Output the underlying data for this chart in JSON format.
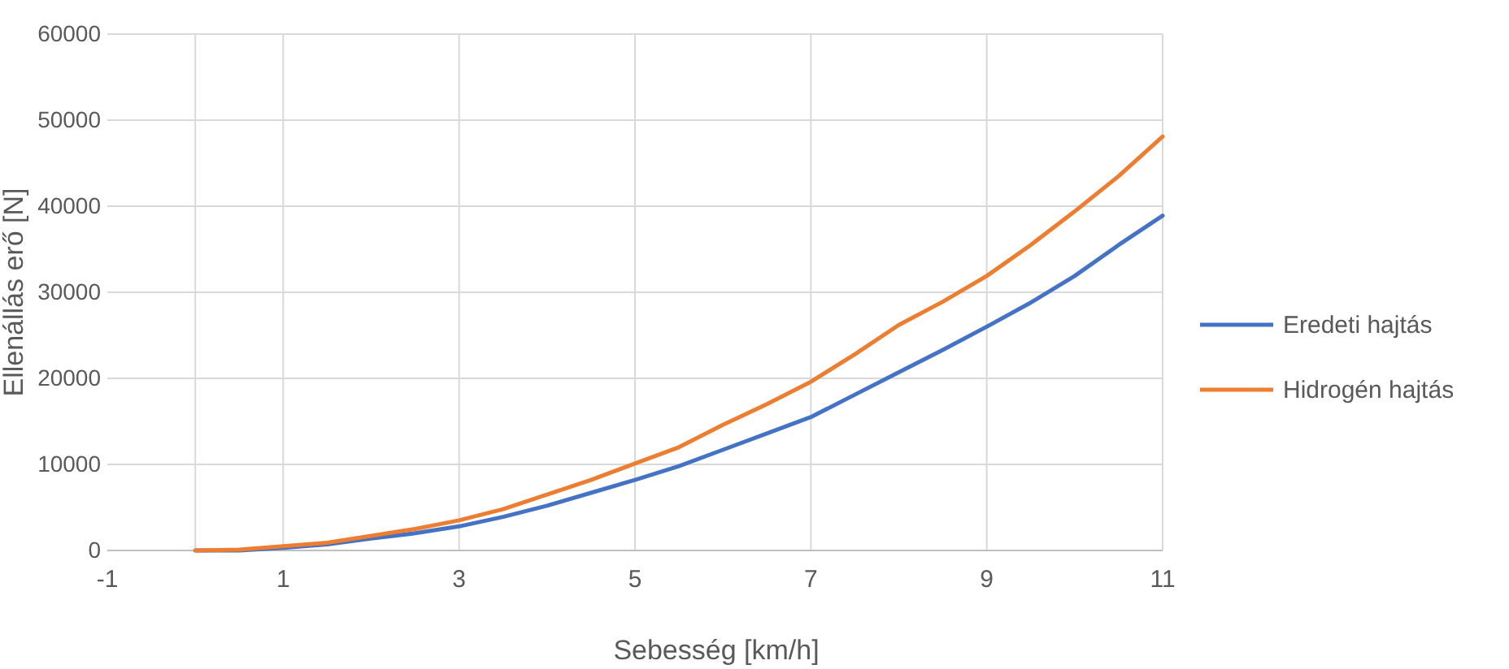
{
  "chart_data": {
    "type": "line",
    "xlabel": "Sebesség [km/h]",
    "ylabel": "Ellenállás erő [N]",
    "x": [
      0,
      0.5,
      1,
      1.5,
      2,
      2.5,
      3,
      3.5,
      4,
      4.5,
      5,
      5.5,
      6,
      6.5,
      7,
      7.5,
      8,
      8.5,
      9,
      9.5,
      10,
      10.5,
      11
    ],
    "series": [
      {
        "name": "Eredeti hajtás",
        "color": "#4472c4",
        "values": [
          0,
          0,
          300,
          700,
          1400,
          2000,
          2800,
          3900,
          5200,
          6700,
          8200,
          9800,
          11700,
          13600,
          15500,
          18100,
          20700,
          23300,
          26000,
          28800,
          31900,
          35500,
          38900
        ]
      },
      {
        "name": "Hidrogén hajtás",
        "color": "#ed7d31",
        "values": [
          0,
          100,
          500,
          900,
          1700,
          2500,
          3500,
          4800,
          6500,
          8200,
          10100,
          12000,
          14600,
          17000,
          19600,
          22800,
          26200,
          28900,
          31900,
          35500,
          39400,
          43500,
          48100
        ]
      }
    ],
    "xlim": [
      -1,
      11
    ],
    "xticks": [
      -1,
      1,
      3,
      5,
      7,
      9,
      11
    ],
    "ylim": [
      0,
      60000
    ],
    "yticks": [
      0,
      10000,
      20000,
      30000,
      40000,
      50000,
      60000
    ],
    "grid": true,
    "legend": "right",
    "marker": "none",
    "line_style": "solid"
  }
}
